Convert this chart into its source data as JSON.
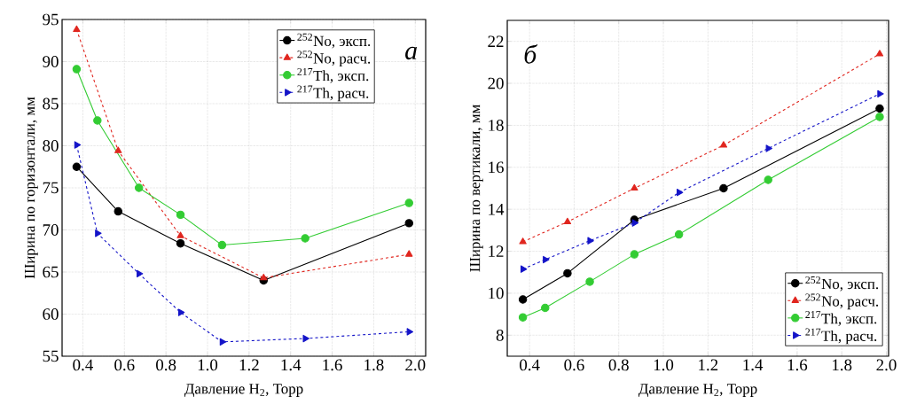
{
  "chart_data": [
    {
      "type": "line",
      "xlabel": "Давление H$_{2}$, Торр",
      "ylabel": "Ширина по горизонтали, мм",
      "annotations": [
        "а"
      ],
      "xlim": [
        0.3,
        2.05
      ],
      "xticks": [
        {
          "value": 0.4,
          "label": "0.4"
        },
        {
          "value": 0.6,
          "label": "0.6"
        },
        {
          "value": 0.8,
          "label": "0.8"
        },
        {
          "value": 1.0,
          "label": "1.0"
        },
        {
          "value": 1.2,
          "label": "1.2"
        },
        {
          "value": 1.4,
          "label": "1.4"
        },
        {
          "value": 1.6,
          "label": "1.6"
        },
        {
          "value": 1.8,
          "label": "1.8"
        },
        {
          "value": 2.0,
          "label": "2.0"
        }
      ],
      "ylim": [
        55,
        95
      ],
      "yticks": [
        55,
        60,
        65,
        70,
        75,
        80,
        85,
        90,
        95
      ],
      "grid": true,
      "legend": "top right",
      "series": [
        {
          "name": "$^{252}$No, эксп.",
          "color": "#000000",
          "marker": "circle",
          "line_style": "solid",
          "x": [
            0.37,
            0.57,
            0.87,
            1.27,
            1.97
          ],
          "values": [
            77.5,
            72.2,
            68.4,
            64.0,
            70.8
          ]
        },
        {
          "name": "$^{252}$No, расч.",
          "color": "#e0261f",
          "marker": "triangle",
          "line_style": "dashed",
          "x": [
            0.37,
            0.57,
            0.87,
            1.27,
            1.97
          ],
          "values": [
            93.8,
            79.4,
            69.3,
            64.3,
            67.1
          ]
        },
        {
          "name": "$^{217}$Th, эксп.",
          "color": "#33cc33",
          "marker": "circle",
          "line_style": "solid",
          "x": [
            0.37,
            0.47,
            0.67,
            0.87,
            1.07,
            1.47,
            1.97
          ],
          "values": [
            89.1,
            83.0,
            75.0,
            71.8,
            68.2,
            69.0,
            73.2
          ]
        },
        {
          "name": "$^{217}$Th, расч.",
          "color": "#1414c8",
          "marker": "triangle-right",
          "line_style": "dashed",
          "x": [
            0.37,
            0.47,
            0.67,
            0.87,
            1.07,
            1.47,
            1.97
          ],
          "values": [
            80.1,
            69.6,
            64.8,
            60.2,
            56.7,
            57.1,
            57.9
          ]
        }
      ]
    },
    {
      "type": "line",
      "xlabel": "Давление H$_{2}$, Торр",
      "ylabel": "Ширина по вертикали, мм",
      "annotations": [
        "б"
      ],
      "xlim": [
        0.3,
        2.01
      ],
      "xticks": [
        {
          "value": 0.4,
          "label": "0.4"
        },
        {
          "value": 0.6,
          "label": "0.6"
        },
        {
          "value": 0.8,
          "label": "0.8"
        },
        {
          "value": 1.0,
          "label": "1.0"
        },
        {
          "value": 1.2,
          "label": "1.2"
        },
        {
          "value": 1.4,
          "label": "1.4"
        },
        {
          "value": 1.6,
          "label": "1.6"
        },
        {
          "value": 1.8,
          "label": "1.8"
        },
        {
          "value": 2.0,
          "label": "2.0"
        }
      ],
      "ylim": [
        7,
        23
      ],
      "yticks": [
        8,
        10,
        12,
        14,
        16,
        18,
        20,
        22
      ],
      "grid": true,
      "legend": "bottom right",
      "series": [
        {
          "name": "$^{252}$No, эксп.",
          "color": "#000000",
          "marker": "circle",
          "line_style": "solid",
          "x": [
            0.37,
            0.57,
            0.87,
            1.27,
            1.97
          ],
          "values": [
            9.7,
            10.95,
            13.5,
            15.0,
            18.8
          ]
        },
        {
          "name": "$^{252}$No, расч.",
          "color": "#e0261f",
          "marker": "triangle",
          "line_style": "dashed",
          "x": [
            0.37,
            0.57,
            0.87,
            1.27,
            1.97
          ],
          "values": [
            12.45,
            13.4,
            15.0,
            17.05,
            21.4
          ]
        },
        {
          "name": "$^{217}$Th, эксп.",
          "color": "#33cc33",
          "marker": "circle",
          "line_style": "solid",
          "x": [
            0.37,
            0.47,
            0.67,
            0.87,
            1.07,
            1.47,
            1.97
          ],
          "values": [
            8.85,
            9.3,
            10.55,
            11.85,
            12.8,
            15.4,
            18.4
          ]
        },
        {
          "name": "$^{217}$Th, расч.",
          "color": "#1414c8",
          "marker": "triangle-right",
          "line_style": "dashed",
          "x": [
            0.37,
            0.47,
            0.67,
            0.87,
            1.07,
            1.47,
            1.97
          ],
          "values": [
            11.15,
            11.6,
            12.5,
            13.35,
            14.8,
            16.9,
            19.5
          ]
        }
      ]
    }
  ]
}
